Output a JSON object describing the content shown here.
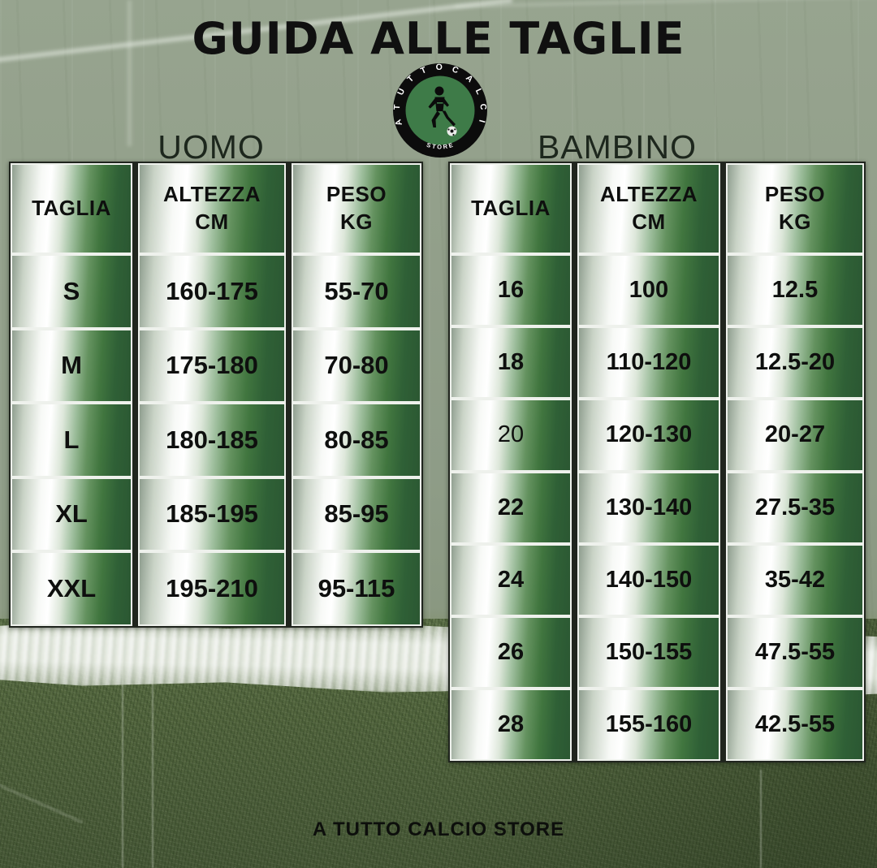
{
  "page": {
    "title": "GUIDA ALLE TAGLIE",
    "footer": "A TUTTO CALCIO STORE"
  },
  "logo": {
    "arc_text": "ATUTTOCALCIO",
    "bottom_text": "STORE",
    "ring_color": "#0c0c0c",
    "inner_color": "#3e7b48"
  },
  "sections": [
    {
      "label": "UOMO"
    },
    {
      "label": "BAMBINO"
    }
  ],
  "colors": {
    "cell_green_dark": "#2b5732",
    "cell_white": "#ffffff",
    "cell_edge_gray": "#8f9e8f",
    "cell_border": "#eef1ec",
    "table_backdrop": "#20251e",
    "field_top": "#8e9c87",
    "grass_bottom": "#4d5f3b",
    "field_line_white": "#e4e9e0",
    "text": "#0e0f0e"
  },
  "chart_data": [
    {
      "type": "table",
      "section": "UOMO",
      "columns": [
        [
          "TAGLIA"
        ],
        [
          "ALTEZZA",
          "CM"
        ],
        [
          "PESO",
          "KG"
        ]
      ],
      "rows": [
        [
          "S",
          "160-175",
          "55-70"
        ],
        [
          "M",
          "175-180",
          "70-80"
        ],
        [
          "L",
          "180-185",
          "80-85"
        ],
        [
          "XL",
          "185-195",
          "85-95"
        ],
        [
          "XXL",
          "195-210",
          "95-115"
        ]
      ]
    },
    {
      "type": "table",
      "section": "BAMBINO",
      "columns": [
        [
          "TAGLIA"
        ],
        [
          "ALTEZZA",
          "CM"
        ],
        [
          "PESO",
          "KG"
        ]
      ],
      "light_cells": [
        [
          2,
          0
        ]
      ],
      "rows": [
        [
          "16",
          "100",
          "12.5"
        ],
        [
          "18",
          "110-120",
          "12.5-20"
        ],
        [
          "20",
          "120-130",
          "20-27"
        ],
        [
          "22",
          "130-140",
          "27.5-35"
        ],
        [
          "24",
          "140-150",
          "35-42"
        ],
        [
          "26",
          "150-155",
          "47.5-55"
        ],
        [
          "28",
          "155-160",
          "42.5-55"
        ]
      ]
    }
  ]
}
